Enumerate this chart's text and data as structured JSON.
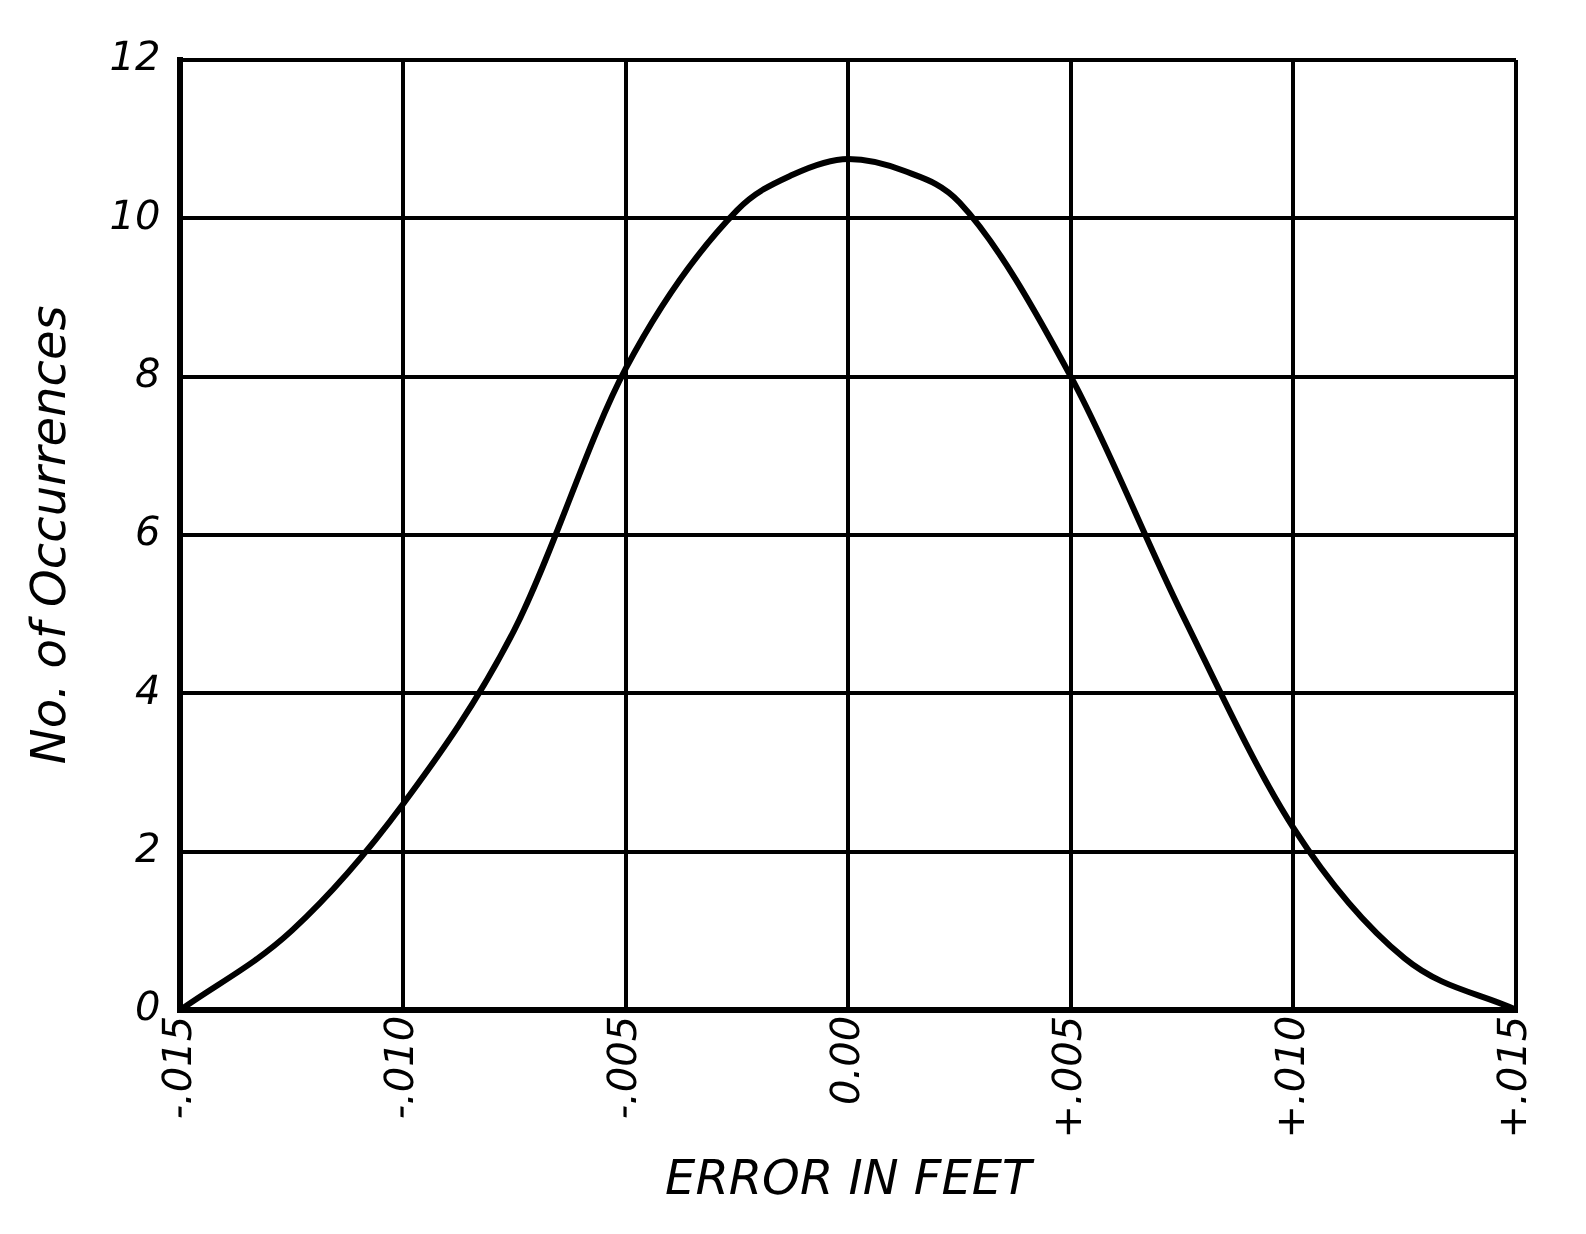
{
  "chart_data": {
    "type": "line",
    "xlabel": "ERROR IN FEET",
    "ylabel": "No. of Occurrences",
    "x": [
      -0.015,
      -0.0125,
      -0.01,
      -0.0075,
      -0.005,
      -0.0025,
      -0.00125,
      0,
      0.00125,
      0.0025,
      0.005,
      0.0075,
      0.01,
      0.0125,
      0.015
    ],
    "series": [
      {
        "color": "#000000",
        "values": [
          0,
          1.0,
          2.6,
          4.8,
          8.1,
          10.1,
          10.55,
          10.75,
          10.6,
          10.2,
          8.0,
          5.0,
          2.3,
          0.65,
          0
        ]
      }
    ],
    "xlim": [
      -0.015,
      0.015
    ],
    "xticks": [
      {
        "value": -0.015,
        "label": "-.015"
      },
      {
        "value": -0.01,
        "label": "-.010"
      },
      {
        "value": -0.005,
        "label": "-.005"
      },
      {
        "value": 0,
        "label": "0.00"
      },
      {
        "value": 0.005,
        "label": "+.005"
      },
      {
        "value": 0.01,
        "label": "+.010"
      },
      {
        "value": 0.015,
        "label": "+.015"
      }
    ],
    "ylim": [
      0,
      12
    ],
    "yticks": [
      0,
      2,
      4,
      6,
      8,
      10,
      12
    ],
    "grid": true,
    "marker": "none",
    "line_style": "solid",
    "legend": false
  }
}
